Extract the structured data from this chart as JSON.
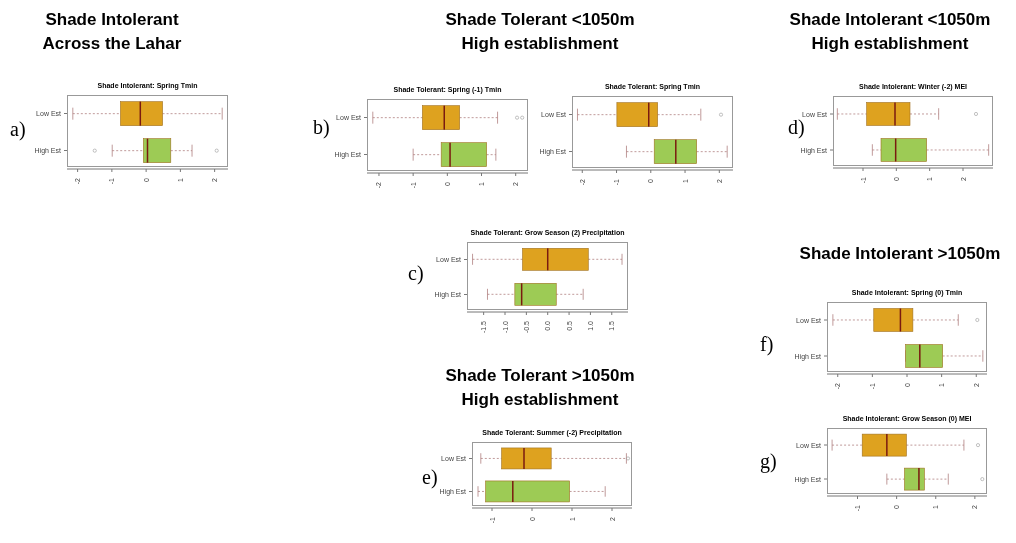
{
  "chart_data": [
    {
      "type": "box",
      "orientation": "horizontal",
      "title": "Shade Intolerant: Spring Tmin",
      "annotations": [
        "a)",
        "Shade Intolerant\nAcross the Lahar"
      ],
      "categories": [
        "Low Est",
        "High Est"
      ],
      "colors": [
        "#dea21f",
        "#9dcb55"
      ],
      "boxes": [
        {
          "low": -2.14,
          "q1": -0.75,
          "median": -0.17,
          "q3": 0.48,
          "high": 2.22
        },
        {
          "low": -0.99,
          "q1": -0.08,
          "median": 0.04,
          "q3": 0.72,
          "high": 1.34,
          "outliers": [
            -1.5,
            2.06
          ]
        }
      ],
      "xlim": [
        -2.31,
        2.39
      ],
      "xticks": [
        -2,
        -1,
        0,
        1,
        2
      ]
    },
    {
      "type": "box",
      "orientation": "horizontal",
      "title": "Shade Tolerant: Spring (-1) Tmin",
      "annotations": [
        "b)",
        "Shade Tolerant <1050m\nHigh establishment"
      ],
      "categories": [
        "Low Est",
        "High Est"
      ],
      "colors": [
        "#dea21f",
        "#9dcb55"
      ],
      "boxes": [
        {
          "low": -2.18,
          "q1": -0.73,
          "median": -0.09,
          "q3": 0.36,
          "high": 1.47,
          "outliers": [
            2.04,
            2.19
          ]
        },
        {
          "low": -1.0,
          "q1": -0.18,
          "median": 0.08,
          "q3": 1.15,
          "high": 1.42
        }
      ],
      "xlim": [
        -2.35,
        2.36
      ],
      "xticks": [
        -2,
        -1,
        0,
        1,
        2
      ]
    },
    {
      "type": "box",
      "orientation": "horizontal",
      "title": "Shade Tolerant: Spring Tmin",
      "categories": [
        "Low Est",
        "High Est"
      ],
      "colors": [
        "#dea21f",
        "#9dcb55"
      ],
      "boxes": [
        {
          "low": -2.14,
          "q1": -0.99,
          "median": -0.06,
          "q3": 0.2,
          "high": 1.46,
          "outliers": [
            2.05
          ]
        },
        {
          "low": -0.71,
          "q1": 0.1,
          "median": 0.73,
          "q3": 1.34,
          "high": 2.23
        }
      ],
      "xlim": [
        -2.3,
        2.4
      ],
      "xticks": [
        -2,
        -1,
        0,
        1,
        2
      ]
    },
    {
      "type": "box",
      "orientation": "horizontal",
      "title": "Shade Intolerant: Winter (-2) MEI",
      "annotations": [
        "d)",
        "Shade Intolerant <1050m\nHigh establishment"
      ],
      "categories": [
        "Low Est",
        "High Est"
      ],
      "colors": [
        "#dea21f",
        "#9dcb55"
      ],
      "boxes": [
        {
          "low": -1.77,
          "q1": -0.89,
          "median": -0.04,
          "q3": 0.41,
          "high": 1.27,
          "outliers": [
            2.39
          ]
        },
        {
          "low": -0.72,
          "q1": -0.46,
          "median": -0.02,
          "q3": 0.91,
          "high": 2.77
        }
      ],
      "xlim": [
        -1.9,
        2.9
      ],
      "xticks": [
        -1,
        0,
        1,
        2
      ]
    },
    {
      "type": "box",
      "orientation": "horizontal",
      "title": "Shade Tolerant: Grow Season (2) Precipitation",
      "annotations": [
        "c)"
      ],
      "categories": [
        "Low Est",
        "High Est"
      ],
      "colors": [
        "#dea21f",
        "#9dcb55"
      ],
      "boxes": [
        {
          "low": -1.76,
          "q1": -0.59,
          "median": 0.0,
          "q3": 0.95,
          "high": 1.74
        },
        {
          "low": -1.41,
          "q1": -0.77,
          "median": -0.61,
          "q3": 0.2,
          "high": 0.83
        }
      ],
      "xlim": [
        -1.89,
        1.88
      ],
      "xticks": [
        -1.5,
        {
          "value": -1,
          "label": "-1.0"
        },
        -0.5,
        {
          "value": 0,
          "label": "0.0"
        },
        0.5,
        {
          "value": 1,
          "label": "1.0"
        },
        1.5
      ]
    },
    {
      "type": "box",
      "orientation": "horizontal",
      "title": "Shade Intolerant: Spring (0) Tmin",
      "annotations": [
        "f)",
        "Shade Intolerant >1050m"
      ],
      "categories": [
        "Low Est",
        "High Est"
      ],
      "colors": [
        "#dea21f",
        "#9dcb55"
      ],
      "boxes": [
        {
          "low": -2.14,
          "q1": -0.96,
          "median": -0.19,
          "q3": 0.17,
          "high": 1.48,
          "outliers": [
            2.03
          ]
        },
        {
          "low": -0.04,
          "q1": -0.04,
          "median": 0.37,
          "q3": 1.03,
          "high": 2.19
        }
      ],
      "xlim": [
        -2.31,
        2.31
      ],
      "xticks": [
        -2,
        -1,
        0,
        1,
        2
      ]
    },
    {
      "type": "box",
      "orientation": "horizontal",
      "title": "Shade Intolerant: Grow Season (0) MEI",
      "annotations": [
        "g)"
      ],
      "categories": [
        "Low Est",
        "High Est"
      ],
      "colors": [
        "#dea21f",
        "#9dcb55"
      ],
      "boxes": [
        {
          "low": -1.65,
          "q1": -0.88,
          "median": -0.25,
          "q3": 0.25,
          "high": 1.72,
          "outliers": [
            2.08
          ]
        },
        {
          "low": -0.25,
          "q1": 0.2,
          "median": 0.57,
          "q3": 0.71,
          "high": 1.32,
          "outliers": [
            2.19
          ]
        }
      ],
      "xlim": [
        -1.78,
        2.31
      ],
      "xticks": [
        -1,
        0,
        1,
        2
      ]
    },
    {
      "type": "box",
      "orientation": "horizontal",
      "title": "Shade Tolerant: Summer (-2) Precipitation",
      "annotations": [
        "e)",
        "Shade Tolerant >1050m\nHigh establishment"
      ],
      "categories": [
        "Low Est",
        "High Est"
      ],
      "colors": [
        "#dea21f",
        "#9dcb55"
      ],
      "boxes": [
        {
          "low": -1.28,
          "q1": -0.76,
          "median": -0.2,
          "q3": 0.48,
          "high": 2.36,
          "outliers": [
            2.4
          ]
        },
        {
          "low": -1.35,
          "q1": -1.16,
          "median": -0.48,
          "q3": 0.94,
          "high": 1.83
        }
      ],
      "xlim": [
        -1.5,
        2.5
      ],
      "xticks": [
        -1,
        0,
        1,
        2
      ]
    }
  ]
}
